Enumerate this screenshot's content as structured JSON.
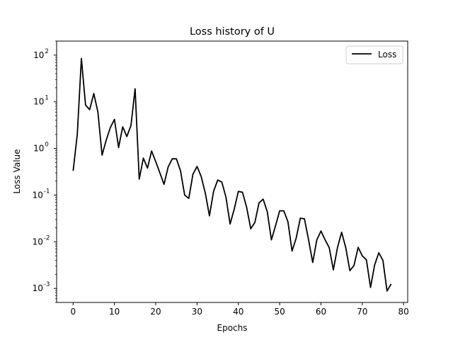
{
  "chart_data": {
    "type": "line",
    "title": "Loss history of U",
    "xlabel": "Epochs",
    "ylabel": "Loss Value",
    "yscale": "log",
    "xlim": [
      -4,
      81
    ],
    "ylim": [
      0.0005,
      200
    ],
    "xticks": [
      0,
      10,
      20,
      30,
      40,
      50,
      60,
      70,
      80
    ],
    "xtick_labels": [
      "0",
      "10",
      "20",
      "30",
      "40",
      "50",
      "60",
      "70",
      "80"
    ],
    "ytick_exponents": [
      -3,
      -2,
      -1,
      0,
      1,
      2
    ],
    "grid": false,
    "legend_position": "top-right",
    "series": [
      {
        "name": "Loss",
        "color": "#000000",
        "x": [
          0,
          1,
          2,
          3,
          4,
          5,
          6,
          7,
          8,
          9,
          10,
          11,
          12,
          13,
          14,
          15,
          16,
          17,
          18,
          19,
          20,
          21,
          22,
          23,
          24,
          25,
          26,
          27,
          28,
          29,
          30,
          31,
          32,
          33,
          34,
          35,
          36,
          37,
          38,
          39,
          40,
          41,
          42,
          43,
          44,
          45,
          46,
          47,
          48,
          49,
          50,
          51,
          52,
          53,
          54,
          55,
          56,
          57,
          58,
          59,
          60,
          61,
          62,
          63,
          64,
          65,
          66,
          67,
          68,
          69,
          70,
          71,
          72,
          73,
          74,
          75,
          76,
          77
        ],
        "values": [
          0.33,
          2.0,
          85,
          8.5,
          6.8,
          15,
          6.0,
          0.72,
          1.5,
          2.8,
          4.2,
          1.05,
          2.9,
          1.8,
          3.1,
          19,
          0.22,
          0.62,
          0.38,
          0.88,
          0.52,
          0.3,
          0.17,
          0.4,
          0.6,
          0.6,
          0.33,
          0.1,
          0.085,
          0.28,
          0.41,
          0.25,
          0.11,
          0.036,
          0.12,
          0.21,
          0.19,
          0.09,
          0.024,
          0.05,
          0.12,
          0.115,
          0.055,
          0.019,
          0.026,
          0.068,
          0.082,
          0.044,
          0.011,
          0.022,
          0.046,
          0.046,
          0.027,
          0.0063,
          0.012,
          0.032,
          0.031,
          0.011,
          0.0036,
          0.011,
          0.017,
          0.011,
          0.0075,
          0.0025,
          0.0075,
          0.016,
          0.0075,
          0.0024,
          0.0031,
          0.0076,
          0.005,
          0.0041,
          0.00105,
          0.0032,
          0.0058,
          0.004,
          0.00088,
          0.00125
        ]
      }
    ]
  }
}
